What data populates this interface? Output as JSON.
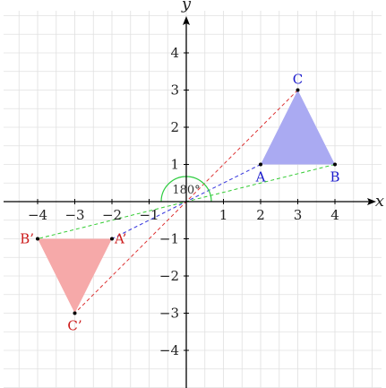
{
  "axes": {
    "x_label": "x",
    "y_label": "y",
    "x_range": [
      -5,
      5
    ],
    "y_range": [
      -5,
      5
    ],
    "x_ticks": [
      -4,
      -3,
      -2,
      -1,
      1,
      2,
      3,
      4
    ],
    "y_ticks": [
      -4,
      -3,
      -2,
      -1,
      1,
      2,
      3,
      4
    ],
    "x_tick_labels": [
      "−4",
      "−3",
      "−2",
      "−1",
      "1",
      "2",
      "3",
      "4"
    ],
    "y_tick_labels": [
      "−4",
      "−3",
      "−2",
      "−1",
      "1",
      "2",
      "3",
      "4"
    ],
    "grid": true,
    "grid_color": "#e0e0e0",
    "axis_color": "#000000"
  },
  "rotation": {
    "center": [
      0,
      0
    ],
    "angle_label": "180°",
    "angle_degrees": 180,
    "arc_color": "#2ecc40"
  },
  "original_triangle": {
    "fill": "#aaaaf2",
    "label_color": "#1a1acc",
    "vertices": [
      {
        "label": "A",
        "x": 2,
        "y": 1,
        "label_pos": "below"
      },
      {
        "label": "B",
        "x": 4,
        "y": 1,
        "label_pos": "below"
      },
      {
        "label": "C",
        "x": 3,
        "y": 3,
        "label_pos": "above"
      }
    ]
  },
  "image_triangle": {
    "fill": "#f6a9a9",
    "label_color": "#cc1a1a",
    "vertices": [
      {
        "label": "A’",
        "x": -2,
        "y": -1,
        "label_pos": "right"
      },
      {
        "label": "B’",
        "x": -4,
        "y": -1,
        "label_pos": "left"
      },
      {
        "label": "C’",
        "x": -3,
        "y": -3,
        "label_pos": "below"
      }
    ]
  },
  "connectors": [
    {
      "from": "A",
      "to": "A’",
      "color": "#3333dd"
    },
    {
      "from": "B",
      "to": "B’",
      "color": "#33cc33"
    },
    {
      "from": "C",
      "to": "C’",
      "color": "#dd3333"
    }
  ]
}
